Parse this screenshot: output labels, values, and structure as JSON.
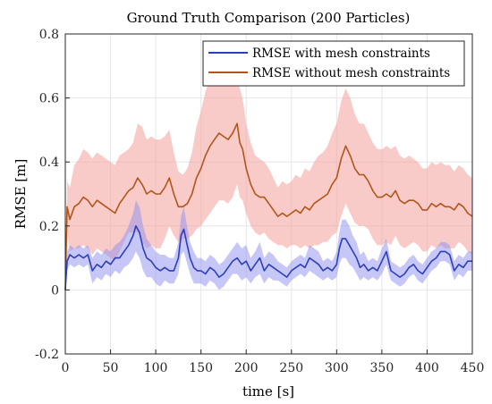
{
  "chart_data": {
    "type": "line",
    "title": "Ground Truth Comparison (200 Particles)",
    "xlabel": "time [s]",
    "ylabel": "RMSE [m]",
    "xlim": [
      0,
      450
    ],
    "ylim": [
      -0.2,
      0.8
    ],
    "xticks": [
      0,
      50,
      100,
      150,
      200,
      250,
      300,
      350,
      400,
      450
    ],
    "yticks": [
      -0.2,
      0,
      0.2,
      0.4,
      0.6,
      0.8
    ],
    "xtick_labels": [
      "0",
      "50",
      "100",
      "150",
      "200",
      "250",
      "300",
      "350",
      "400",
      "450"
    ],
    "ytick_labels": [
      "-0.2",
      "0",
      "0.2",
      "0.4",
      "0.6",
      "0.8"
    ],
    "grid": true,
    "legend_position": "top-right",
    "series": [
      {
        "name": "RMSE with mesh constraints",
        "color": "#2b3fb8",
        "band_color": "#8f8ff0",
        "x": [
          0,
          2,
          5,
          10,
          15,
          20,
          25,
          30,
          35,
          40,
          45,
          50,
          55,
          60,
          65,
          70,
          75,
          78,
          82,
          86,
          90,
          95,
          100,
          105,
          110,
          115,
          120,
          125,
          128,
          131,
          134,
          138,
          142,
          146,
          150,
          155,
          160,
          165,
          170,
          175,
          180,
          185,
          190,
          195,
          200,
          205,
          210,
          215,
          220,
          225,
          230,
          235,
          240,
          245,
          250,
          255,
          260,
          265,
          270,
          275,
          280,
          285,
          290,
          295,
          300,
          303,
          306,
          310,
          314,
          318,
          322,
          326,
          330,
          335,
          340,
          345,
          350,
          355,
          360,
          365,
          370,
          375,
          380,
          385,
          390,
          395,
          400,
          405,
          410,
          415,
          420,
          425,
          430,
          435,
          440,
          445,
          450
        ],
        "y": [
          0.0,
          0.09,
          0.11,
          0.1,
          0.11,
          0.1,
          0.11,
          0.06,
          0.08,
          0.07,
          0.09,
          0.08,
          0.1,
          0.1,
          0.12,
          0.14,
          0.17,
          0.2,
          0.18,
          0.13,
          0.1,
          0.09,
          0.07,
          0.06,
          0.07,
          0.06,
          0.06,
          0.1,
          0.17,
          0.19,
          0.15,
          0.1,
          0.07,
          0.06,
          0.06,
          0.05,
          0.07,
          0.06,
          0.04,
          0.05,
          0.07,
          0.09,
          0.1,
          0.08,
          0.09,
          0.06,
          0.08,
          0.1,
          0.06,
          0.08,
          0.07,
          0.06,
          0.05,
          0.04,
          0.06,
          0.07,
          0.08,
          0.07,
          0.1,
          0.09,
          0.08,
          0.06,
          0.07,
          0.06,
          0.08,
          0.13,
          0.16,
          0.16,
          0.14,
          0.12,
          0.1,
          0.07,
          0.08,
          0.06,
          0.07,
          0.06,
          0.09,
          0.12,
          0.06,
          0.05,
          0.04,
          0.05,
          0.07,
          0.08,
          0.06,
          0.05,
          0.07,
          0.09,
          0.1,
          0.12,
          0.12,
          0.11,
          0.06,
          0.08,
          0.07,
          0.09,
          0.09
        ],
        "band_half_width": [
          0.0,
          0.03,
          0.03,
          0.03,
          0.03,
          0.03,
          0.03,
          0.04,
          0.04,
          0.04,
          0.04,
          0.04,
          0.04,
          0.05,
          0.05,
          0.06,
          0.07,
          0.08,
          0.08,
          0.07,
          0.06,
          0.05,
          0.05,
          0.05,
          0.04,
          0.04,
          0.04,
          0.05,
          0.06,
          0.07,
          0.06,
          0.05,
          0.05,
          0.04,
          0.04,
          0.04,
          0.04,
          0.04,
          0.04,
          0.04,
          0.04,
          0.04,
          0.05,
          0.05,
          0.05,
          0.04,
          0.04,
          0.05,
          0.04,
          0.04,
          0.04,
          0.03,
          0.03,
          0.03,
          0.03,
          0.03,
          0.03,
          0.03,
          0.04,
          0.04,
          0.04,
          0.03,
          0.03,
          0.03,
          0.04,
          0.05,
          0.06,
          0.06,
          0.06,
          0.05,
          0.05,
          0.04,
          0.04,
          0.03,
          0.03,
          0.03,
          0.04,
          0.04,
          0.03,
          0.03,
          0.03,
          0.03,
          0.03,
          0.03,
          0.03,
          0.03,
          0.03,
          0.03,
          0.03,
          0.03,
          0.03,
          0.03,
          0.03,
          0.03,
          0.03,
          0.03,
          0.03
        ]
      },
      {
        "name": "RMSE without mesh constraints",
        "color": "#b0561c",
        "band_color": "#f4a09a",
        "x": [
          0,
          2,
          5,
          10,
          15,
          20,
          25,
          30,
          35,
          40,
          45,
          50,
          55,
          60,
          65,
          70,
          75,
          80,
          85,
          90,
          95,
          100,
          105,
          110,
          115,
          120,
          125,
          130,
          135,
          140,
          145,
          150,
          155,
          160,
          165,
          170,
          175,
          180,
          185,
          190,
          193,
          196,
          200,
          205,
          210,
          215,
          220,
          225,
          230,
          235,
          240,
          245,
          250,
          255,
          260,
          265,
          270,
          275,
          280,
          285,
          290,
          295,
          300,
          305,
          310,
          315,
          320,
          325,
          330,
          335,
          340,
          345,
          350,
          355,
          360,
          365,
          370,
          375,
          380,
          385,
          390,
          395,
          400,
          405,
          410,
          415,
          420,
          425,
          430,
          435,
          440,
          445,
          450
        ],
        "y": [
          0.0,
          0.26,
          0.22,
          0.26,
          0.27,
          0.29,
          0.28,
          0.26,
          0.28,
          0.27,
          0.26,
          0.25,
          0.24,
          0.27,
          0.29,
          0.31,
          0.32,
          0.35,
          0.33,
          0.3,
          0.31,
          0.3,
          0.3,
          0.32,
          0.35,
          0.3,
          0.26,
          0.26,
          0.27,
          0.3,
          0.35,
          0.38,
          0.42,
          0.45,
          0.47,
          0.49,
          0.48,
          0.47,
          0.49,
          0.52,
          0.46,
          0.44,
          0.38,
          0.33,
          0.3,
          0.29,
          0.29,
          0.27,
          0.25,
          0.23,
          0.24,
          0.23,
          0.24,
          0.25,
          0.24,
          0.26,
          0.25,
          0.27,
          0.28,
          0.29,
          0.3,
          0.33,
          0.35,
          0.41,
          0.45,
          0.42,
          0.38,
          0.36,
          0.36,
          0.34,
          0.31,
          0.29,
          0.29,
          0.3,
          0.29,
          0.31,
          0.28,
          0.27,
          0.28,
          0.28,
          0.27,
          0.25,
          0.25,
          0.27,
          0.26,
          0.27,
          0.26,
          0.26,
          0.25,
          0.27,
          0.26,
          0.24,
          0.23
        ],
        "band_half_width": [
          0.0,
          0.08,
          0.1,
          0.13,
          0.14,
          0.15,
          0.15,
          0.15,
          0.15,
          0.15,
          0.15,
          0.15,
          0.15,
          0.15,
          0.14,
          0.13,
          0.14,
          0.17,
          0.18,
          0.17,
          0.17,
          0.17,
          0.17,
          0.16,
          0.15,
          0.13,
          0.11,
          0.1,
          0.11,
          0.13,
          0.16,
          0.18,
          0.2,
          0.21,
          0.21,
          0.21,
          0.2,
          0.2,
          0.2,
          0.19,
          0.17,
          0.16,
          0.14,
          0.13,
          0.12,
          0.12,
          0.11,
          0.11,
          0.1,
          0.09,
          0.1,
          0.1,
          0.1,
          0.11,
          0.11,
          0.12,
          0.12,
          0.13,
          0.14,
          0.14,
          0.15,
          0.16,
          0.17,
          0.18,
          0.18,
          0.18,
          0.17,
          0.16,
          0.16,
          0.15,
          0.15,
          0.15,
          0.15,
          0.15,
          0.15,
          0.14,
          0.14,
          0.14,
          0.14,
          0.13,
          0.13,
          0.13,
          0.13,
          0.13,
          0.13,
          0.13,
          0.13,
          0.13,
          0.12,
          0.12,
          0.12,
          0.12,
          0.12
        ]
      }
    ]
  }
}
